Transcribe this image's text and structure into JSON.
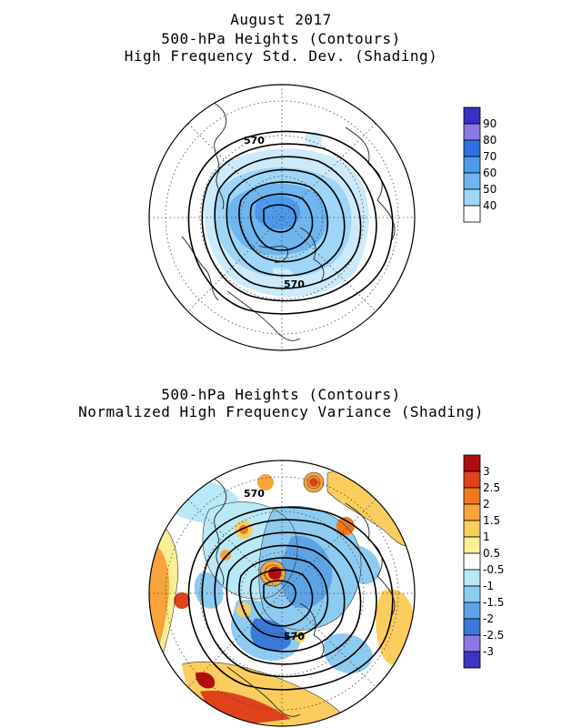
{
  "header": {
    "month_title": "August 2017"
  },
  "panel_top": {
    "title_line1": "500-hPa Heights (Contours)",
    "title_line2": "High Frequency Std. Dev. (Shading)",
    "contour_labels": [
      "570",
      "570"
    ],
    "colorbar": {
      "labels": [
        "90",
        "80",
        "70",
        "60",
        "50",
        "40"
      ],
      "colors": [
        "#3a2ec7",
        "#8a79e6",
        "#2f6fe0",
        "#4b9bea",
        "#9fd6f7",
        "#ffffff"
      ]
    }
  },
  "panel_bottom": {
    "title_line1": "500-hPa Heights (Contours)",
    "title_line2": "Normalized High Frequency Variance (Shading)",
    "contour_labels": [
      "570",
      "570"
    ],
    "colorbar": {
      "labels": [
        "3",
        "2.5",
        "2",
        "1.5",
        "1",
        "0.5",
        "-0.5",
        "-1",
        "-1.5",
        "-2",
        "-2.5",
        "-3"
      ],
      "colors": [
        "#b30c0c",
        "#e0421c",
        "#f0781e",
        "#f7a43b",
        "#fbcd5e",
        "#fcee96",
        "#ffffff",
        "#b9e8f7",
        "#8ecbf0",
        "#5da3e6",
        "#3b79d8",
        "#8c78e6",
        "#3f33c2"
      ]
    }
  }
}
